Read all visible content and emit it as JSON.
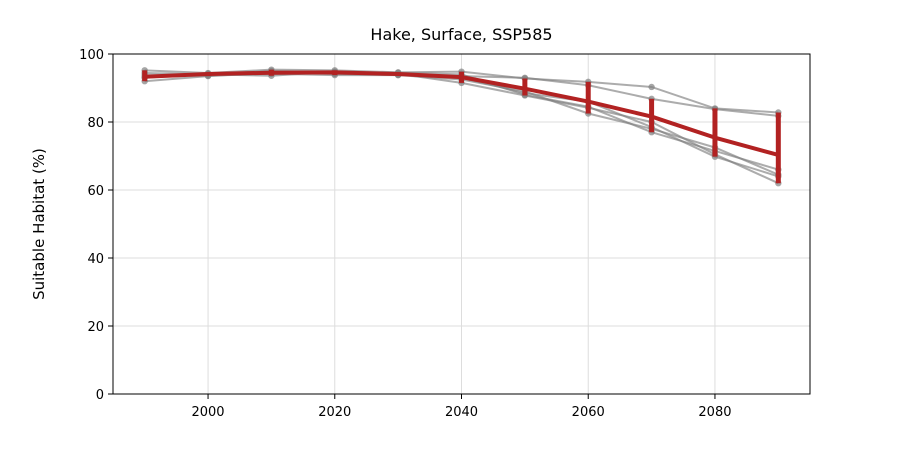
{
  "chart_data": {
    "type": "line",
    "title": "Hake, Surface, SSP585",
    "xlabel": "",
    "ylabel": "Suitable Habitat (%)",
    "xlim": [
      1985,
      2095
    ],
    "ylim": [
      0,
      100
    ],
    "xticks": [
      2000,
      2020,
      2040,
      2060,
      2080
    ],
    "yticks": [
      0,
      20,
      40,
      60,
      80,
      100
    ],
    "grid": true,
    "legend": "none",
    "x": [
      1990,
      2000,
      2010,
      2020,
      2030,
      2040,
      2050,
      2060,
      2070,
      2080,
      2090
    ],
    "series": [
      {
        "values": [
          95.2,
          94.4,
          95.4,
          95.2,
          94.6,
          94.8,
          92.8,
          91.8,
          90.3,
          84.0,
          82.8
        ]
      },
      {
        "values": [
          92.0,
          93.5,
          94.6,
          94.2,
          93.8,
          93.5,
          93.0,
          90.8,
          86.8,
          83.8,
          81.8
        ]
      },
      {
        "values": [
          93.2,
          94.0,
          93.6,
          94.8,
          94.5,
          94.0,
          88.0,
          84.5,
          77.0,
          71.5,
          66.0
        ]
      },
      {
        "values": [
          93.8,
          93.6,
          94.2,
          93.8,
          93.8,
          92.5,
          89.0,
          82.5,
          78.0,
          72.5,
          64.5
        ]
      },
      {
        "values": [
          93.0,
          94.2,
          94.5,
          94.2,
          94.2,
          91.5,
          87.8,
          84.2,
          80.0,
          70.5,
          62.0
        ]
      },
      {
        "values": [
          94.4,
          94.0,
          95.0,
          94.6,
          94.0,
          93.0,
          88.5,
          86.0,
          78.5,
          69.8,
          64.0
        ]
      }
    ],
    "mean": {
      "values": [
        93.3,
        94.1,
        94.5,
        94.6,
        94.1,
        93.2,
        89.8,
        86.0,
        81.6,
        75.4,
        70.3
      ],
      "err_low": [
        1.3,
        0.6,
        0.9,
        0.8,
        0.5,
        1.7,
        2.0,
        3.5,
        4.6,
        5.6,
        8.3
      ],
      "err_high": [
        1.9,
        0.3,
        0.9,
        0.6,
        0.5,
        1.6,
        3.0,
        5.8,
        5.2,
        8.6,
        12.5
      ]
    },
    "colors": {
      "mean": "#b22222",
      "members": "#808080",
      "grid": "#dddddd"
    }
  }
}
